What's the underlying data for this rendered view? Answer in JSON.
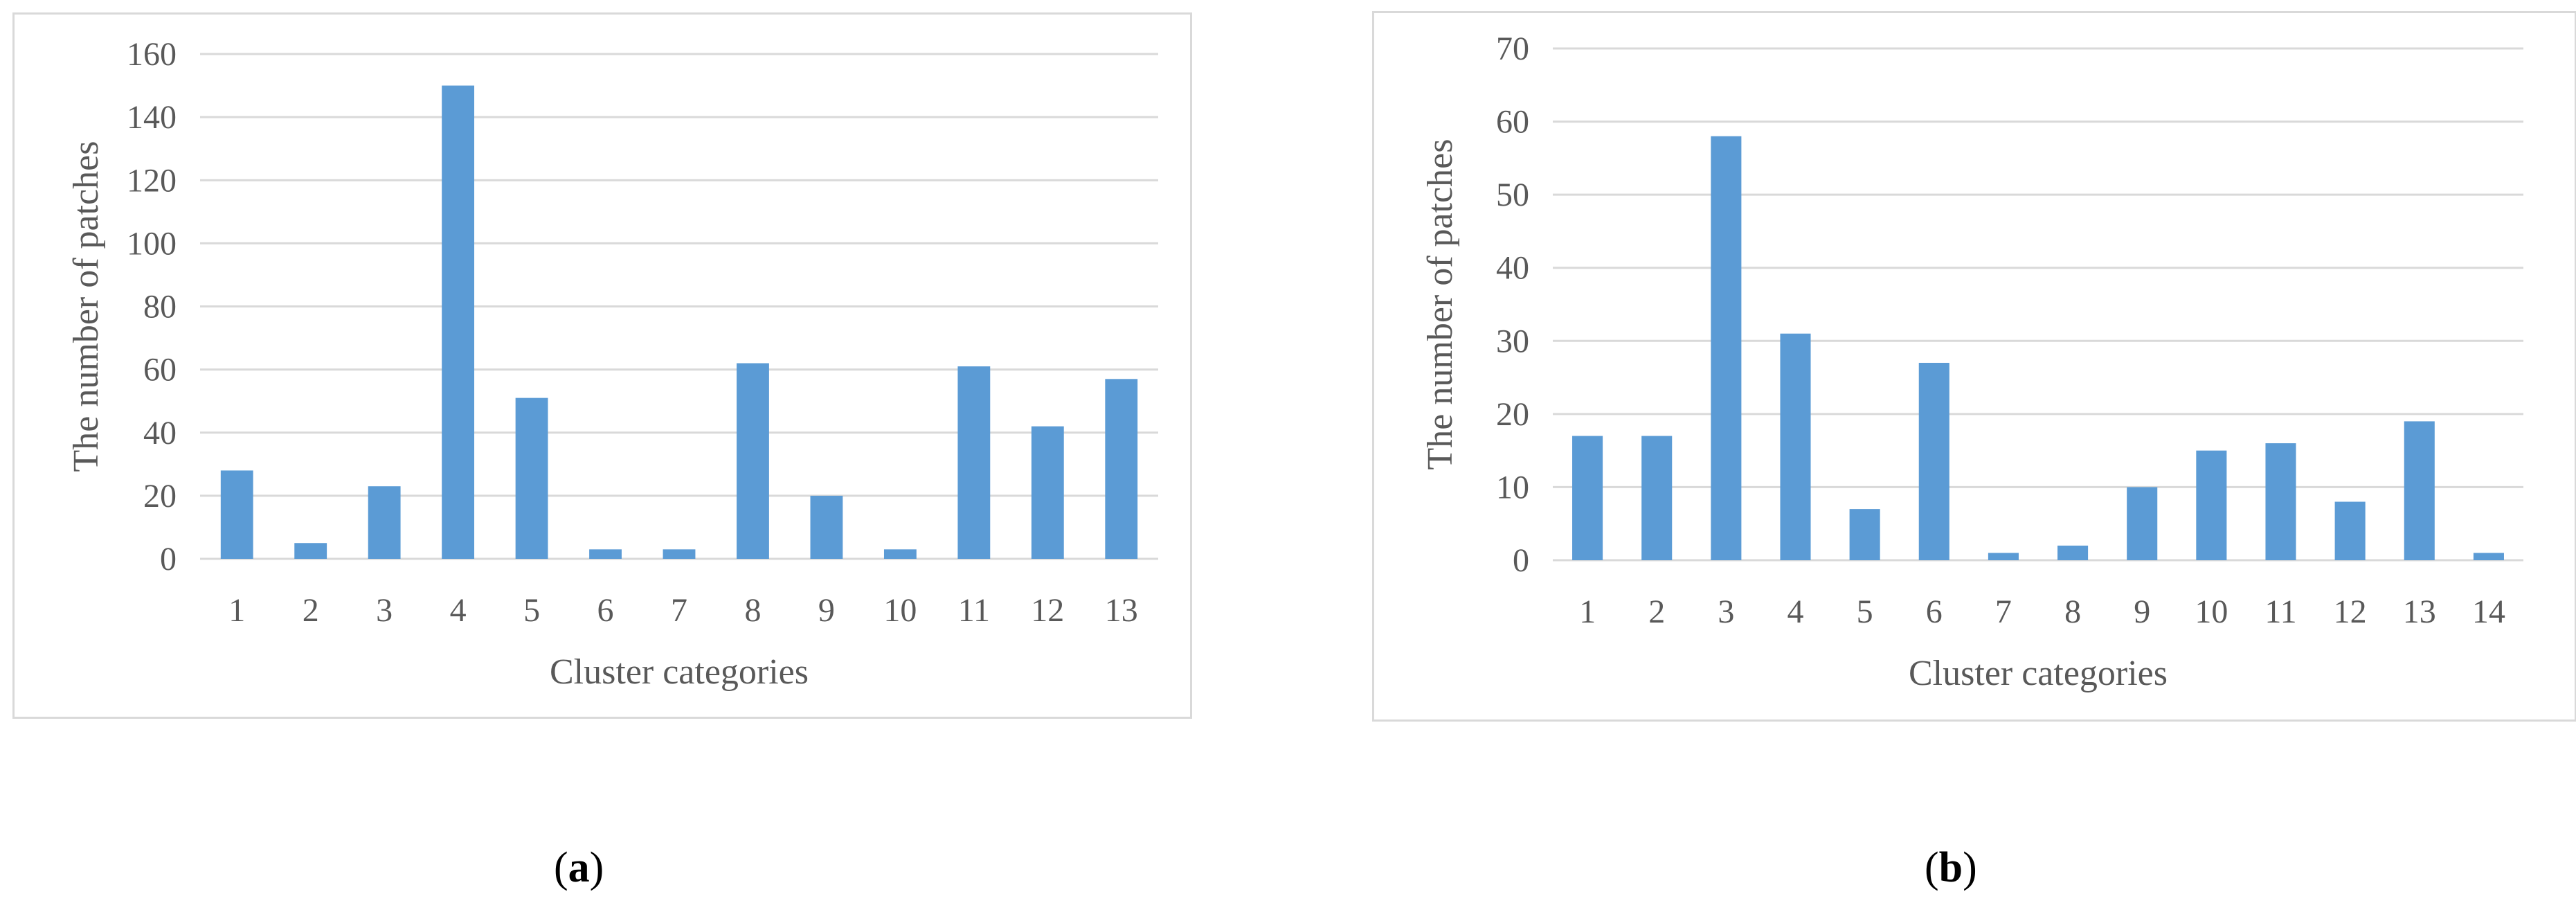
{
  "chart_data": [
    {
      "type": "bar",
      "panel_label": "a",
      "xlabel": "Cluster categories",
      "ylabel": "The number of patches",
      "categories": [
        "1",
        "2",
        "3",
        "4",
        "5",
        "6",
        "7",
        "8",
        "9",
        "10",
        "11",
        "12",
        "13"
      ],
      "values": [
        28,
        5,
        23,
        150,
        51,
        3,
        3,
        62,
        20,
        3,
        61,
        42,
        57
      ],
      "ylim": [
        0,
        160
      ],
      "yticks": [
        0,
        20,
        40,
        60,
        80,
        100,
        120,
        140,
        160
      ],
      "grid": true,
      "bar_color": "#5b9bd5"
    },
    {
      "type": "bar",
      "panel_label": "b",
      "xlabel": "Cluster categories",
      "ylabel": "The number of patches",
      "categories": [
        "1",
        "2",
        "3",
        "4",
        "5",
        "6",
        "7",
        "8",
        "9",
        "10",
        "11",
        "12",
        "13",
        "14"
      ],
      "values": [
        17,
        17,
        58,
        31,
        7,
        27,
        1,
        2,
        10,
        15,
        16,
        8,
        19,
        1
      ],
      "ylim": [
        0,
        70
      ],
      "yticks": [
        0,
        10,
        20,
        30,
        40,
        50,
        60,
        70
      ],
      "grid": true,
      "bar_color": "#5b9bd5"
    }
  ],
  "colors": {
    "grid": "#d9d9d9",
    "axis_text": "#595959",
    "border": "#d9d9d9"
  }
}
